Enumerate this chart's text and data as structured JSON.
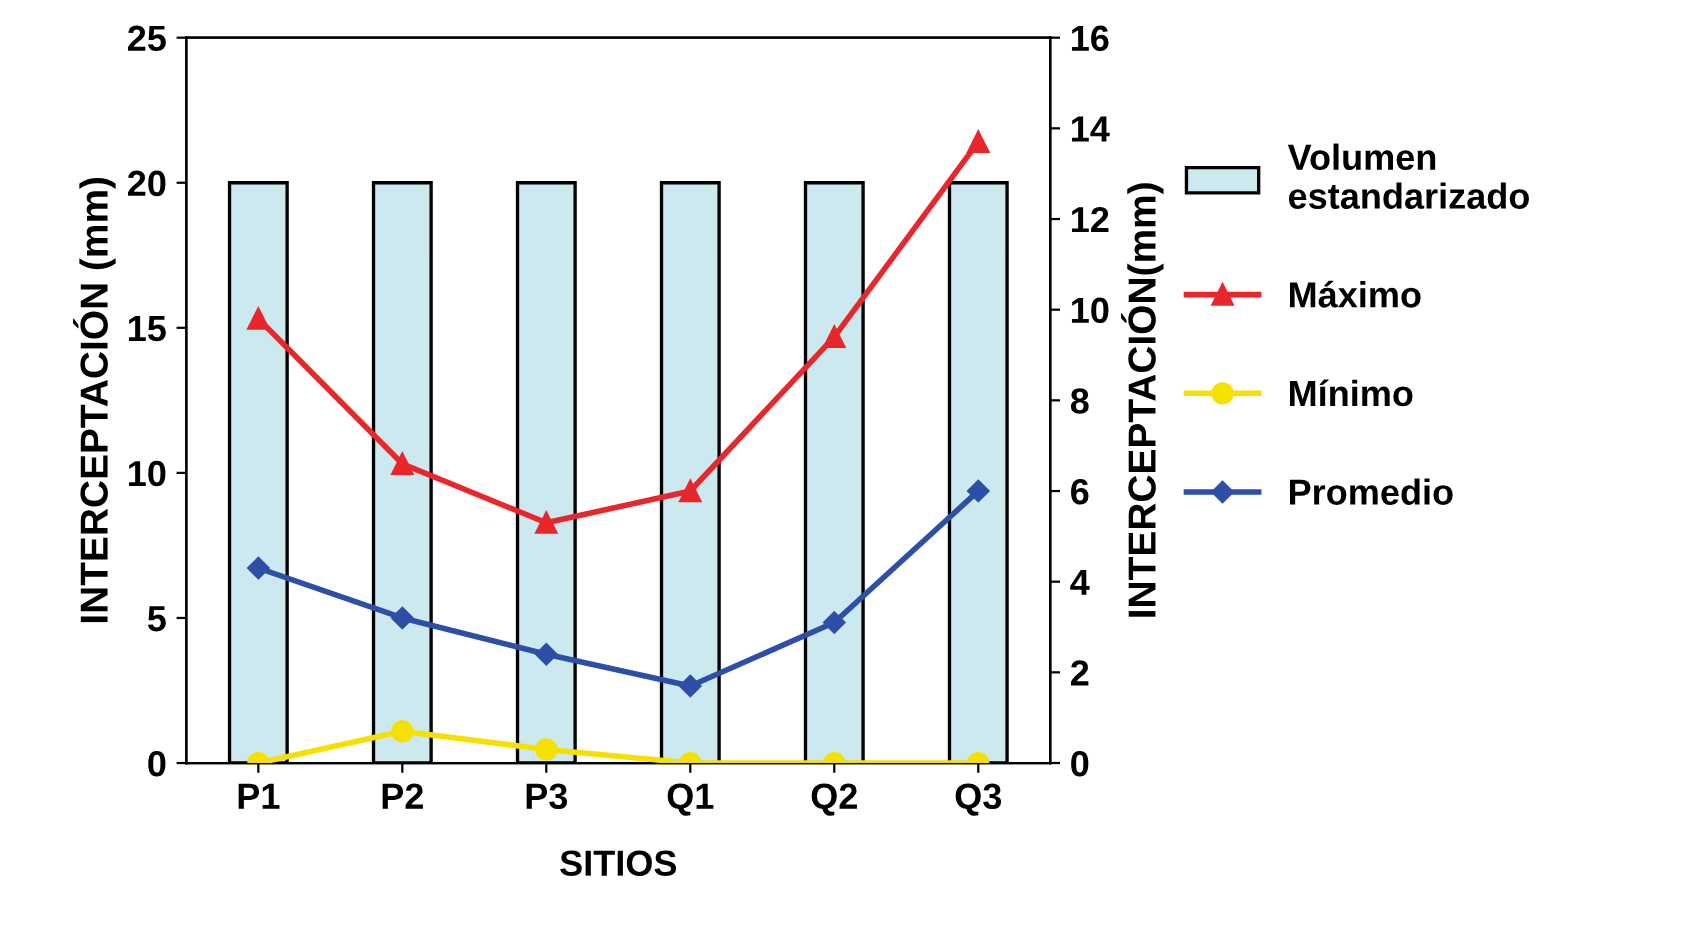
{
  "chart_data": {
    "type": "line",
    "categories": [
      "P1",
      "P2",
      "P3",
      "Q1",
      "Q2",
      "Q3"
    ],
    "xlabel": "SITIOS",
    "ylabel": "INTERCEPTACIÓN (mm)",
    "y2label": "INTERCEPTACIÓN(mm)",
    "ylim": [
      0,
      25
    ],
    "yticks": [
      0,
      5,
      10,
      15,
      20,
      25
    ],
    "y2lim": [
      0,
      16
    ],
    "y2ticks": [
      0,
      2,
      4,
      6,
      8,
      10,
      12,
      14,
      16
    ],
    "legend": "right",
    "series": [
      {
        "name": "Volumen estandarizado",
        "type": "bar",
        "color": "#cde9f0",
        "values": [
          20,
          20,
          20,
          20,
          20,
          20
        ]
      },
      {
        "name": "Máximo",
        "axis": "y2",
        "color": "#e8262b",
        "marker": "triangle",
        "values": [
          9.8,
          6.6,
          5.3,
          6.0,
          9.4,
          13.7
        ]
      },
      {
        "name": "Mínimo",
        "axis": "y2",
        "color": "#f5e000",
        "marker": "circle",
        "values": [
          0,
          0.7,
          0.3,
          0,
          0,
          0
        ]
      },
      {
        "name": "Promedio",
        "axis": "y2",
        "color": "#2e4fa8",
        "marker": "diamond",
        "values": [
          4.3,
          3.2,
          2.4,
          1.7,
          3.1,
          6.0
        ]
      }
    ]
  }
}
